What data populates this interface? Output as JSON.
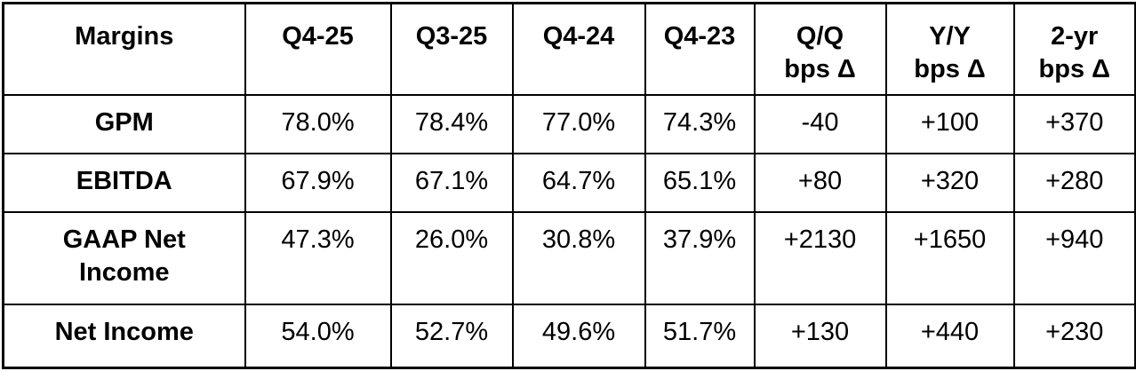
{
  "chart_data": {
    "type": "table",
    "title": "Margins table: quarterly margin percentages with basis-point deltas",
    "columns": [
      "Margins",
      "Q4-25",
      "Q3-25",
      "Q4-24",
      "Q4-23",
      "Q/Q\nbps Δ",
      "Y/Y\nbps Δ",
      "2-yr\nbps Δ"
    ],
    "rows": [
      [
        "GPM",
        "78.0%",
        "78.4%",
        "77.0%",
        "74.3%",
        "-40",
        "+100",
        "+370"
      ],
      [
        "EBITDA",
        "67.9%",
        "67.1%",
        "64.7%",
        "65.1%",
        "+80",
        "+320",
        "+280"
      ],
      [
        "GAAP Net\nIncome",
        "47.3%",
        "26.0%",
        "30.8%",
        "37.9%",
        "+2130",
        "+1650",
        "+940"
      ],
      [
        "Net Income",
        "54.0%",
        "52.7%",
        "49.6%",
        "51.7%",
        "+130",
        "+440",
        "+230"
      ]
    ],
    "layout": {
      "grid": "full black gridlines",
      "header_style": "bold, top-aligned",
      "row_label_style": "bold",
      "value_style": "regular"
    }
  },
  "colors": {
    "border": "#000000",
    "text": "#000000",
    "background": "#ffffff"
  }
}
